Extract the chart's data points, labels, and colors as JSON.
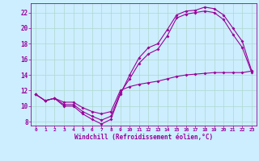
{
  "xlabel": "Windchill (Refroidissement éolien,°C)",
  "background_color": "#cceeff",
  "grid_color": "#b0d8cc",
  "line_color": "#990099",
  "xlim": [
    -0.5,
    23.5
  ],
  "ylim": [
    7.5,
    23.2
  ],
  "xticks": [
    0,
    1,
    2,
    3,
    4,
    5,
    6,
    7,
    8,
    9,
    10,
    11,
    12,
    13,
    14,
    15,
    16,
    17,
    18,
    19,
    20,
    21,
    22,
    23
  ],
  "yticks": [
    8,
    10,
    12,
    14,
    16,
    18,
    20,
    22
  ],
  "line1_x": [
    0,
    1,
    2,
    3,
    4,
    5,
    6,
    7,
    8,
    9,
    10,
    11,
    12,
    13,
    14,
    15,
    16,
    17,
    18,
    19,
    20,
    21,
    22,
    23
  ],
  "line1_y": [
    11.5,
    10.7,
    11.0,
    10.0,
    10.0,
    9.0,
    8.3,
    7.7,
    8.3,
    11.5,
    14.0,
    16.2,
    17.5,
    18.0,
    19.8,
    21.7,
    22.2,
    22.3,
    22.7,
    22.5,
    21.7,
    20.0,
    18.3,
    14.5
  ],
  "line2_x": [
    0,
    1,
    2,
    3,
    4,
    5,
    6,
    7,
    8,
    9,
    10,
    11,
    12,
    13,
    14,
    15,
    16,
    17,
    18,
    19,
    20,
    21,
    22,
    23
  ],
  "line2_y": [
    11.5,
    10.7,
    11.0,
    10.2,
    10.2,
    9.3,
    8.7,
    8.2,
    8.7,
    11.7,
    13.5,
    15.5,
    16.7,
    17.3,
    19.0,
    21.3,
    21.8,
    22.0,
    22.2,
    22.0,
    21.1,
    19.2,
    17.5,
    14.3
  ],
  "line3_x": [
    0,
    1,
    2,
    3,
    4,
    5,
    6,
    7,
    8,
    9,
    10,
    11,
    12,
    13,
    14,
    15,
    16,
    17,
    18,
    19,
    20,
    21,
    22,
    23
  ],
  "line3_y": [
    11.5,
    10.7,
    11.0,
    10.5,
    10.5,
    9.8,
    9.3,
    9.0,
    9.3,
    12.0,
    12.5,
    12.8,
    13.0,
    13.2,
    13.5,
    13.8,
    14.0,
    14.1,
    14.2,
    14.3,
    14.3,
    14.3,
    14.3,
    14.5
  ],
  "figsize": [
    3.2,
    2.0
  ],
  "dpi": 100
}
